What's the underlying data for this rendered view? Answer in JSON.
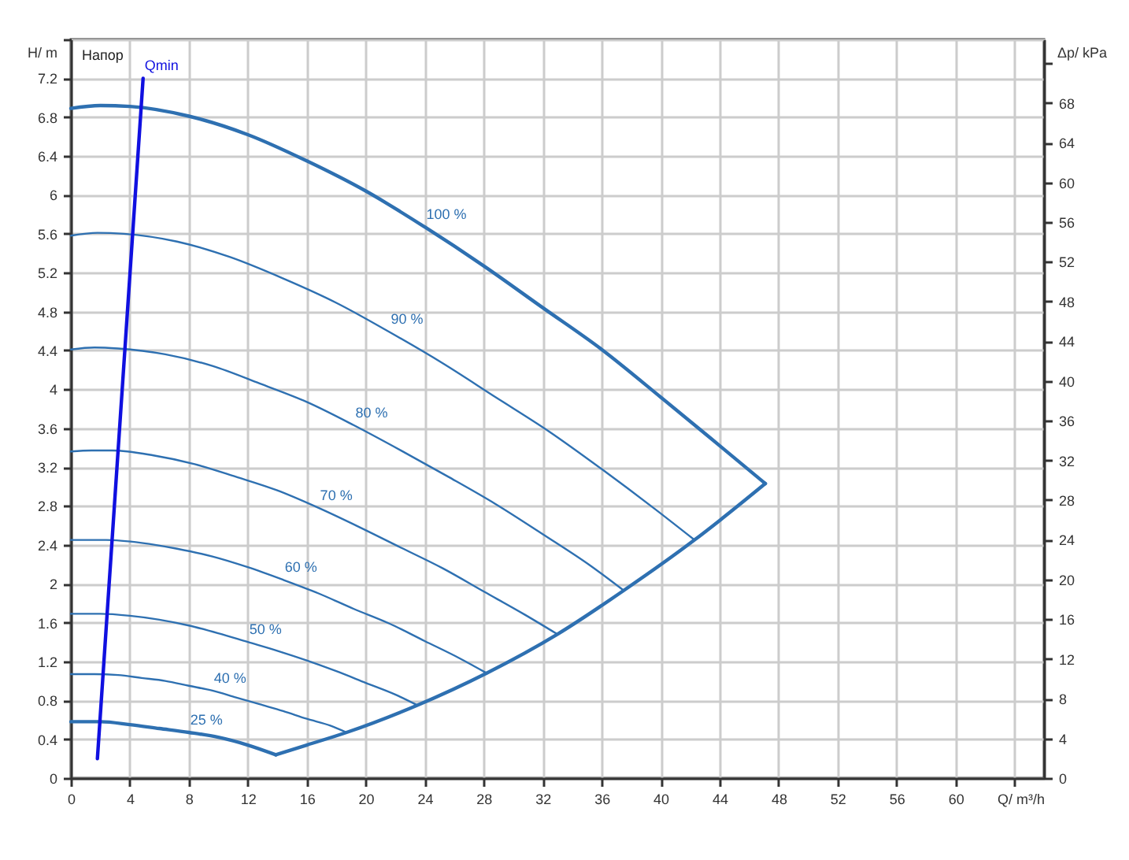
{
  "chart_data": {
    "type": "line",
    "xlabel": "Q/ m³/h",
    "ylabel": "H/ m",
    "y2label": "Δp/ kPa",
    "annotations": [
      "Напор"
    ],
    "xlim": [
      0,
      66
    ],
    "xticks": [
      0,
      4,
      8,
      12,
      16,
      20,
      24,
      28,
      32,
      36,
      40,
      44,
      48,
      52,
      56,
      60,
      {
        "value": 64,
        "label": null
      }
    ],
    "ylim": [
      0,
      7.6
    ],
    "yticks": [
      0,
      0.4,
      0.8,
      1.2,
      1.6,
      2,
      2.4,
      2.8,
      3.2,
      3.6,
      4,
      4.4,
      4.8,
      5.2,
      5.6,
      6,
      6.4,
      6.8,
      7.2,
      {
        "value": 7.6,
        "label": null
      }
    ],
    "y2lim": [
      0,
      74.4
    ],
    "y2ticks": [
      0,
      4,
      8,
      12,
      16,
      20,
      24,
      28,
      32,
      36,
      40,
      44,
      48,
      52,
      56,
      60,
      64,
      68,
      {
        "value": 72,
        "label": null
      }
    ],
    "grid": true,
    "series": [
      {
        "name": "100 %",
        "color": "#2e70b1",
        "x": [
          0,
          2,
          4,
          8,
          12,
          16,
          20,
          24,
          28,
          32,
          36,
          40,
          44,
          47.1
        ],
        "values": [
          6.89,
          6.92,
          6.91,
          6.81,
          6.62,
          6.35,
          6.04,
          5.67,
          5.27,
          4.84,
          4.41,
          3.92,
          3.42,
          3.03
        ]
      },
      {
        "name": "90 %",
        "color": "#2e70b1",
        "x": [
          0,
          1.8,
          3.6,
          7.2,
          10.8,
          14.4,
          18,
          21.6,
          25.2,
          28.8,
          32.4,
          36,
          39.6,
          42.3
        ],
        "values": [
          5.58,
          5.61,
          5.6,
          5.52,
          5.36,
          5.14,
          4.89,
          4.59,
          4.27,
          3.92,
          3.57,
          3.18,
          2.77,
          2.45
        ]
      },
      {
        "name": "80 %",
        "color": "#2e70b1",
        "x": [
          0,
          1.6,
          3.2,
          6.4,
          9.6,
          12.8,
          16,
          19.2,
          22.4,
          25.6,
          28.8,
          32,
          35.2,
          37.5
        ],
        "values": [
          4.41,
          4.43,
          4.42,
          4.36,
          4.24,
          4.06,
          3.87,
          3.63,
          3.37,
          3.1,
          2.82,
          2.51,
          2.19,
          1.93
        ]
      },
      {
        "name": "70 %",
        "color": "#2e70b1",
        "x": [
          0,
          1.4,
          2.8,
          5.6,
          8.4,
          11.2,
          14,
          16.8,
          19.6,
          22.4,
          25.2,
          28,
          30.8,
          33
        ],
        "values": [
          3.36,
          3.37,
          3.37,
          3.32,
          3.23,
          3.1,
          2.96,
          2.78,
          2.58,
          2.37,
          2.16,
          1.92,
          1.68,
          1.48
        ]
      },
      {
        "name": "60 %",
        "color": "#2e70b1",
        "x": [
          0,
          1.2,
          2.4,
          4.8,
          7.2,
          9.6,
          12,
          14.4,
          16.8,
          19.2,
          21.6,
          24,
          26.4,
          28.2
        ],
        "values": [
          2.45,
          2.45,
          2.45,
          2.42,
          2.36,
          2.28,
          2.17,
          2.04,
          1.9,
          1.74,
          1.59,
          1.41,
          1.23,
          1.08
        ]
      },
      {
        "name": "50 %",
        "color": "#2e70b1",
        "x": [
          0,
          1,
          2,
          4,
          6,
          8,
          10,
          12,
          14,
          16,
          18,
          20,
          22,
          23.5
        ],
        "values": [
          1.69,
          1.69,
          1.69,
          1.67,
          1.63,
          1.57,
          1.49,
          1.4,
          1.31,
          1.21,
          1.1,
          0.98,
          0.86,
          0.75
        ]
      },
      {
        "name": "40 %",
        "color": "#2e70b1",
        "x": [
          0,
          0.8,
          1.6,
          3.2,
          4.8,
          6.4,
          8,
          9.6,
          11.2,
          12.8,
          14.4,
          16,
          17.6,
          18.7
        ],
        "values": [
          1.07,
          1.07,
          1.07,
          1.06,
          1.03,
          1,
          0.95,
          0.9,
          0.83,
          0.76,
          0.69,
          0.61,
          0.54,
          0.47
        ]
      },
      {
        "name": "25 %",
        "color": "#2e70b1",
        "x": [
          0,
          2,
          4,
          6,
          8,
          10,
          12,
          13.9
        ],
        "values": [
          0.58,
          0.58,
          0.55,
          0.51,
          0.47,
          0.42,
          0.34,
          0.24
        ]
      },
      {
        "color": "#2e70b1",
        "x": [
          13.9,
          16,
          18.7,
          23.5,
          28.2,
          33,
          37.5,
          42.3,
          44,
          47.1
        ],
        "values": [
          0.24,
          0.34,
          0.47,
          0.75,
          1.08,
          1.48,
          1.93,
          2.45,
          2.65,
          3.03
        ]
      },
      {
        "name": "Qmin",
        "color": "#1010e0",
        "x": [
          1.8,
          4.9
        ],
        "values": [
          0.2,
          7.2
        ]
      }
    ]
  }
}
